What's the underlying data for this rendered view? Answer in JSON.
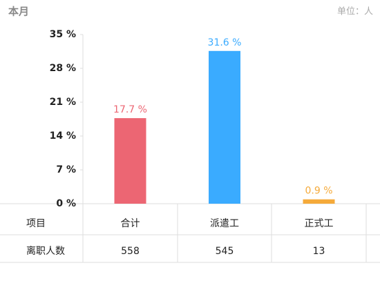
{
  "chart_data": {
    "type": "bar",
    "title": "本月",
    "unit": "单位：人",
    "categories": [
      "合计",
      "派遣工",
      "正式工"
    ],
    "values": [
      17.7,
      31.6,
      0.9
    ],
    "value_labels": [
      "17.7 %",
      "31.6 %",
      "0.9 %"
    ],
    "colors": [
      "#ec6673",
      "#3aabff",
      "#f5aa3a"
    ],
    "ylim": [
      0,
      35
    ],
    "yticks": [
      {
        "value": 0,
        "label": "0 %"
      },
      {
        "value": 7,
        "label": "7 %"
      },
      {
        "value": 14,
        "label": "14 %"
      },
      {
        "value": 21,
        "label": "21 %"
      },
      {
        "value": 28,
        "label": "28 %"
      },
      {
        "value": 35,
        "label": "35 %"
      }
    ]
  },
  "table": {
    "header": "项目",
    "rows": [
      [
        "离职人数",
        558,
        545,
        13
      ]
    ]
  }
}
